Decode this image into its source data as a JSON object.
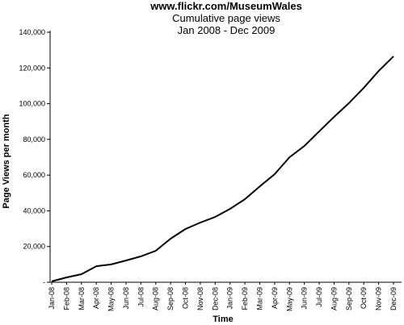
{
  "chart_data": {
    "type": "line",
    "title": "www.flickr.com/MuseumWales",
    "subtitle": "Cumulative page views",
    "period": "Jan 2008 - Dec 2009",
    "x_label": "Time",
    "y_label": "Page Views per month",
    "categories": [
      "Jan-08",
      "Feb-08",
      "Mar-08",
      "Apr-08",
      "May-08",
      "Jun-08",
      "Jul-08",
      "Aug-08",
      "Sep-08",
      "Oct-08",
      "Nov-08",
      "Dec-08",
      "Jan-09",
      "Feb-09",
      "Mar-09",
      "Apr-09",
      "May-09",
      "Jun-09",
      "Jul-09",
      "Aug-09",
      "Sep-09",
      "Oct-09",
      "Nov-09",
      "Dec-09"
    ],
    "values": [
      500,
      2700,
      4500,
      9000,
      10000,
      12200,
      14500,
      17600,
      24400,
      29800,
      33400,
      36600,
      41100,
      46500,
      53700,
      60500,
      70000,
      76300,
      84500,
      92600,
      100300,
      108900,
      118300,
      126500
    ],
    "color": "#000000",
    "ylim": [
      0,
      140000
    ],
    "yticks": [
      {
        "value": 0,
        "label": "-"
      },
      {
        "value": 20000,
        "label": "20,000"
      },
      {
        "value": 40000,
        "label": "40,000"
      },
      {
        "value": 60000,
        "label": "60,000"
      },
      {
        "value": 80000,
        "label": "80,000"
      },
      {
        "value": 100000,
        "label": "100,000"
      },
      {
        "value": 120000,
        "label": "120,000"
      },
      {
        "value": 140000,
        "label": "140,000"
      }
    ],
    "grid": false
  }
}
